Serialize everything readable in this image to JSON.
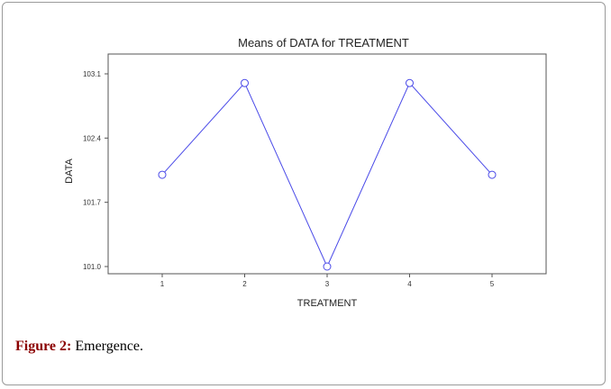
{
  "chart_data": {
    "type": "line",
    "title": "Means of DATA for TREATMENT",
    "xlabel": "TREATMENT",
    "ylabel": "DATA",
    "x": [
      "1",
      "2",
      "3",
      "4",
      "5"
    ],
    "series": [
      {
        "values": [
          102.0,
          103.0,
          101.0,
          103.0,
          102.0
        ]
      }
    ],
    "yticks": [
      "101.0",
      "101.7",
      "102.4",
      "103.1"
    ],
    "ylim": [
      101.0,
      103.1
    ],
    "grid": false,
    "marker": "open-circle",
    "line_color": "#4a4ae8"
  },
  "caption": {
    "label": "Figure 2:",
    "text": " Emergence."
  }
}
